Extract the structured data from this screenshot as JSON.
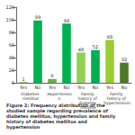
{
  "chart_data": {
    "type": "bar",
    "title": "Figure 2: Frequency distribution of the studied sample regarding prevalence of diabetes mellitus, hypertension and family history of diabetes mellitus and hypertension",
    "categories": [
      "Yes",
      "No",
      "Yes",
      "No",
      "Yes",
      "No",
      "Yes",
      "No"
    ],
    "group_labels": [
      "Diabetes mellitus",
      "Hypertension",
      "Family history of diabetes mellitus",
      "Family history of hypertension"
    ],
    "values": [
      1,
      99,
      6,
      94,
      48,
      52,
      68,
      32
    ],
    "colors": [
      "#70ad47",
      "#00b050",
      "#70ad47",
      "#00b050",
      "#92d050",
      "#00b050",
      "#9acd32",
      "#4e7a27"
    ],
    "ylim": [
      0,
      120
    ],
    "yticks": [
      0,
      20,
      40,
      60,
      80,
      100,
      120
    ],
    "grid": false,
    "data_labels": true
  }
}
